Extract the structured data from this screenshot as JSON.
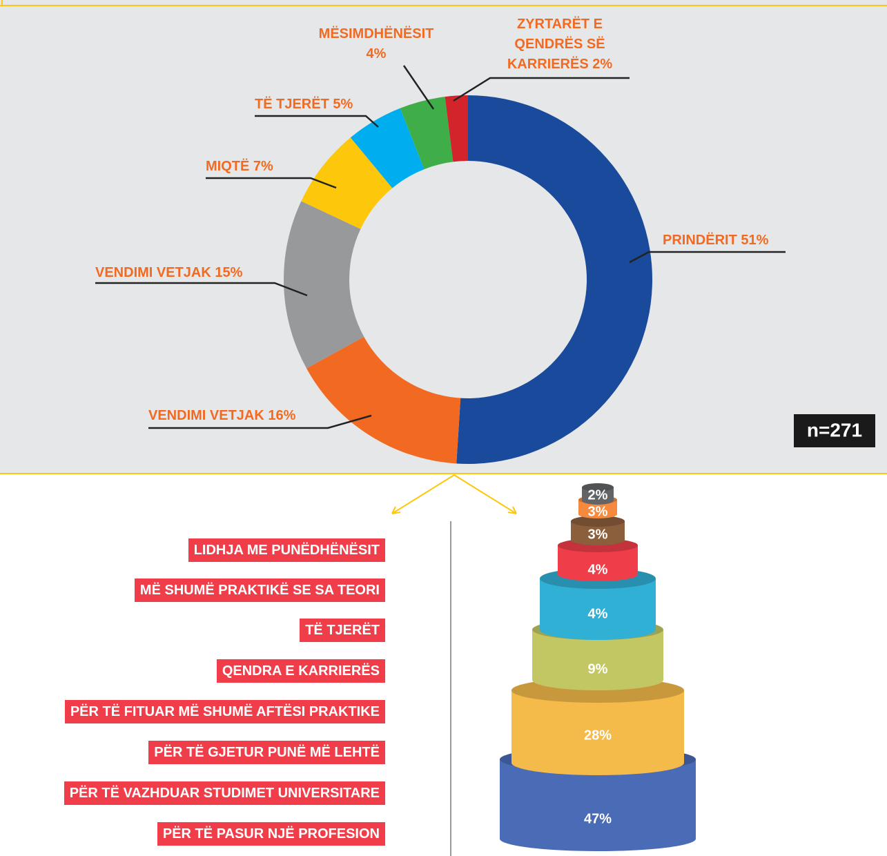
{
  "chart_data": [
    {
      "type": "donut",
      "categories": [
        "PRINDËRIT",
        "VENDIMI VETJAK",
        "VENDIMI VETJAK",
        "MIQTË",
        "TË TJERËT",
        "MËSIMDHËNËSIT",
        "ZYRTARËT E QENDRËS SË KARRIERËS"
      ],
      "values": [
        51,
        16,
        15,
        7,
        5,
        4,
        2
      ],
      "value_labels": [
        "51%",
        "16%",
        "15%",
        "7%",
        "5%",
        "4%",
        "2%"
      ],
      "colors": [
        "#1a4a9c",
        "#f26a21",
        "#98999b",
        "#fdc70c",
        "#00aeef",
        "#3fae49",
        "#d4242b"
      ],
      "annotation": "n=271"
    },
    {
      "type": "cylinder_stack",
      "categories": [
        "LIDHJA ME PUNËDHËNËSIT",
        "MË SHUMË PRAKTIKË SE SA TEORI",
        "TË TJERËT",
        "QENDRA E KARRIERËS",
        "PËR TË FITUAR MË SHUMË AFTËSI PRAKTIKE",
        "PËR TË GJETUR PUNË MË LEHTË",
        "PËR TË VAZHDUAR STUDIMET UNIVERSITARE",
        "PËR TË PASUR NJË PROFESION"
      ],
      "values": [
        2,
        3,
        3,
        4,
        4,
        9,
        28,
        47
      ],
      "value_labels": [
        "2%",
        "3%",
        "3%",
        "4%",
        "4%",
        "9%",
        "28%",
        "47%"
      ],
      "colors": [
        "#636466",
        "#f58a3e",
        "#8b5e3c",
        "#ef3e4a",
        "#31b0d5",
        "#c2c763",
        "#f4ba4a",
        "#4a6bb5"
      ]
    }
  ]
}
